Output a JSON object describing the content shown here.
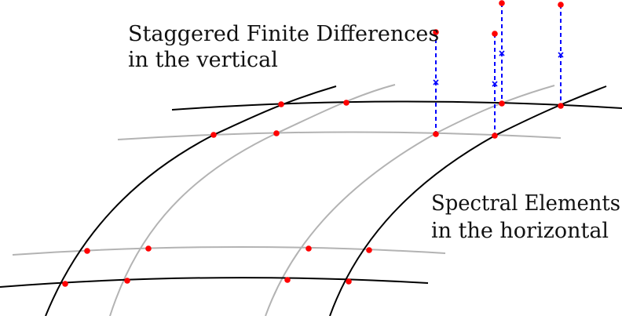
{
  "labels": {
    "vertical": {
      "line1": "Staggered Finite Differences",
      "line2": "in the vertical"
    },
    "horizontal": {
      "line1": "Spectral Elements",
      "line2": "in the horizontal"
    }
  },
  "colors": {
    "element_boundary": "#000000",
    "interior_gll_line": "#b3b3b3",
    "gll_node": "#ff0000",
    "vertical_column": "#0000ff",
    "staggered_midpoint": "#0000ff"
  },
  "icons": {
    "node": "filled-dot",
    "midpoint": "x-marker"
  }
}
